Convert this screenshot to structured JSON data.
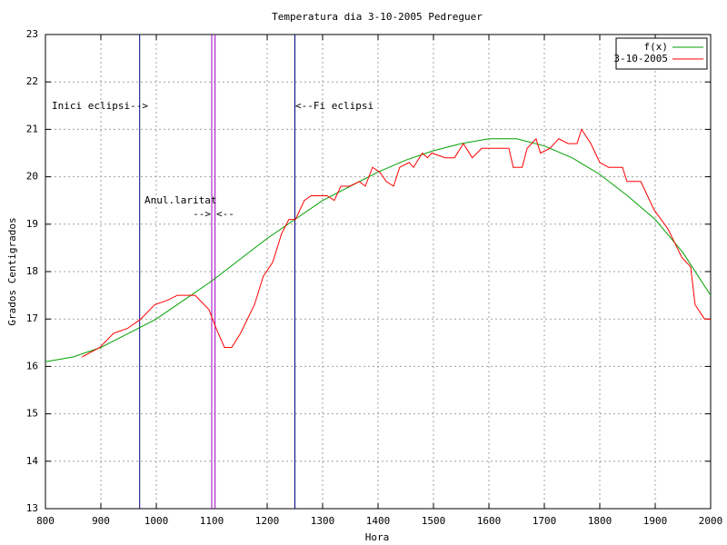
{
  "chart_data": {
    "type": "line",
    "title": "Temperatura dia 3-10-2005 Pedreguer",
    "xlabel": "Hora",
    "ylabel": "Grados Centigrados",
    "xlim": [
      800,
      2000
    ],
    "ylim": [
      13,
      23
    ],
    "xticks": [
      800,
      900,
      1000,
      1100,
      1200,
      1300,
      1400,
      1500,
      1600,
      1700,
      1800,
      1900,
      2000
    ],
    "yticks": [
      13,
      14,
      15,
      16,
      17,
      18,
      19,
      20,
      21,
      22,
      23
    ],
    "grid": true,
    "legend": "top-right",
    "series": [
      {
        "name": "f(x)",
        "color": "#00a000",
        "x": [
          800,
          850,
          900,
          950,
          1000,
          1050,
          1100,
          1150,
          1200,
          1250,
          1300,
          1350,
          1400,
          1450,
          1500,
          1550,
          1600,
          1650,
          1700,
          1750,
          1800,
          1850,
          1900,
          1950,
          2000
        ],
        "values": [
          16.1,
          16.2,
          16.4,
          16.7,
          17.0,
          17.4,
          17.8,
          18.25,
          18.7,
          19.1,
          19.5,
          19.8,
          20.1,
          20.35,
          20.55,
          20.7,
          20.8,
          20.8,
          20.65,
          20.4,
          20.05,
          19.6,
          19.1,
          18.4,
          17.5
        ]
      },
      {
        "name": "3-10-2005",
        "color": "#ff0000",
        "x": [
          866,
          882,
          898,
          923,
          948,
          972,
          997,
          1021,
          1038,
          1070,
          1095,
          1108,
          1123,
          1136,
          1152,
          1177,
          1193,
          1210,
          1226,
          1239,
          1251,
          1267,
          1279,
          1308,
          1321,
          1333,
          1349,
          1366,
          1377,
          1390,
          1403,
          1415,
          1428,
          1439,
          1456,
          1464,
          1480,
          1489,
          1497,
          1521,
          1538,
          1554,
          1570,
          1587,
          1636,
          1644,
          1660,
          1669,
          1685,
          1693,
          1710,
          1726,
          1743,
          1759,
          1767,
          1784,
          1800,
          1816,
          1841,
          1849,
          1874,
          1898,
          1923,
          1948,
          1964,
          1972,
          1989,
          2000
        ],
        "values": [
          16.2,
          16.3,
          16.4,
          16.7,
          16.8,
          17.0,
          17.3,
          17.4,
          17.5,
          17.5,
          17.2,
          16.8,
          16.4,
          16.4,
          16.7,
          17.3,
          17.9,
          18.2,
          18.8,
          19.1,
          19.1,
          19.5,
          19.6,
          19.6,
          19.5,
          19.8,
          19.8,
          19.9,
          19.8,
          20.2,
          20.1,
          19.9,
          19.8,
          20.2,
          20.3,
          20.2,
          20.5,
          20.4,
          20.5,
          20.4,
          20.4,
          20.7,
          20.4,
          20.6,
          20.6,
          20.2,
          20.2,
          20.6,
          20.8,
          20.5,
          20.6,
          20.8,
          20.7,
          20.7,
          21.0,
          20.7,
          20.3,
          20.2,
          20.2,
          19.9,
          19.9,
          19.3,
          18.9,
          18.3,
          18.1,
          17.3,
          17.0,
          17.0
        ]
      }
    ],
    "vlines": [
      {
        "x": 970,
        "color": "#000080"
      },
      {
        "x": 1100,
        "color": "#a000c0"
      },
      {
        "x": 1106,
        "color": "#a000c0"
      },
      {
        "x": 1250,
        "color": "#000080"
      }
    ],
    "annotations": [
      "Inici eclipsi-->",
      "<--Fi eclipsi",
      "Anul.laritat",
      "-->",
      "<--"
    ]
  }
}
